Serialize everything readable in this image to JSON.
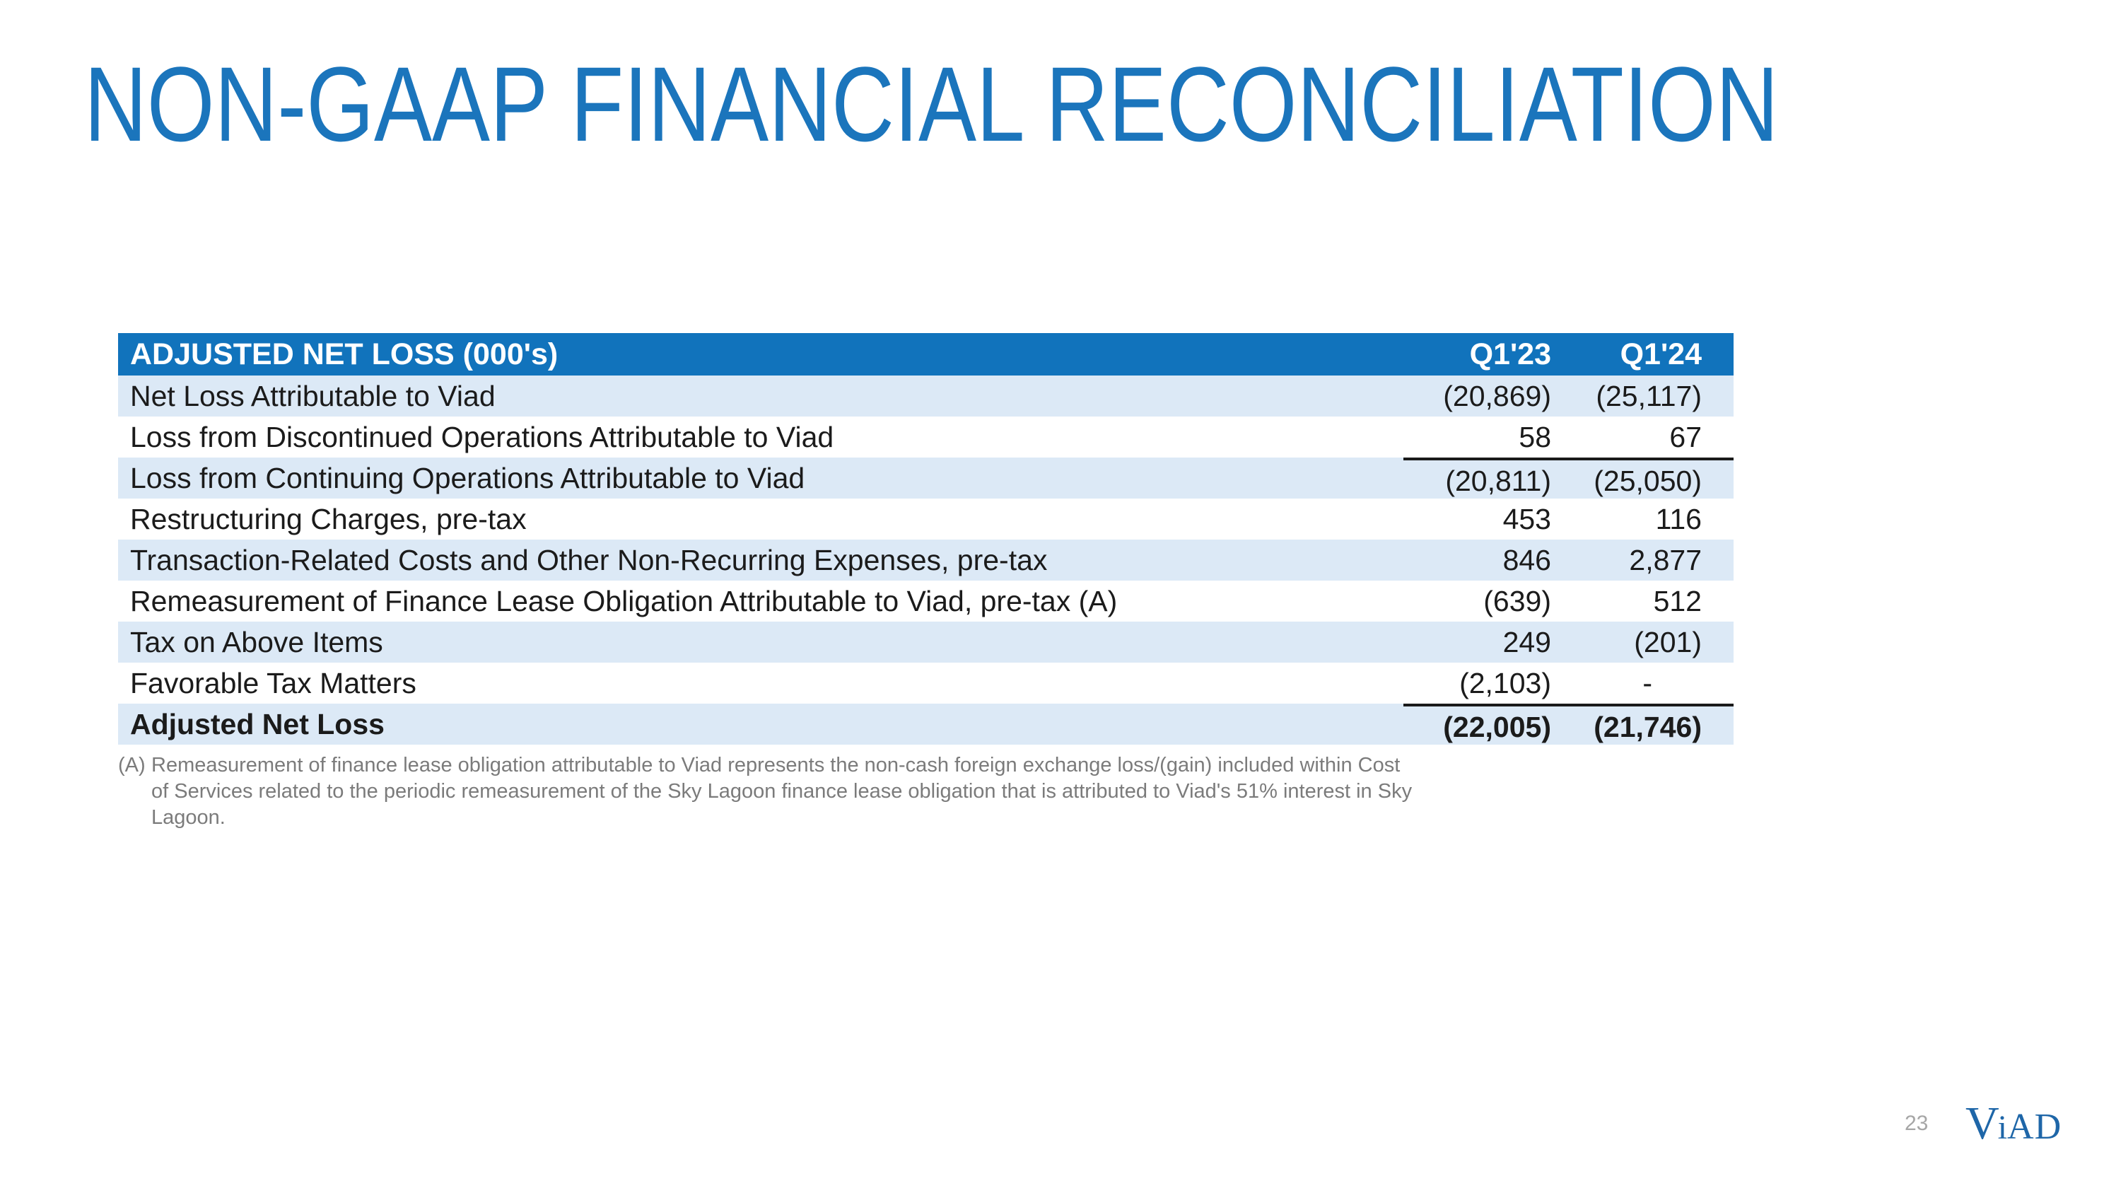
{
  "slide": {
    "title": "NON-GAAP FINANCIAL RECONCILIATION",
    "page_number": "23",
    "logo": {
      "v": "V",
      "i": "i",
      "ad": "AD"
    }
  },
  "table": {
    "header": {
      "label": "ADJUSTED NET LOSS (000's)",
      "col1": "Q1'23",
      "col2": "Q1'24"
    },
    "rows": [
      {
        "label": "Net Loss Attributable to Viad",
        "q123": "(20,869)",
        "q124": "(25,117)"
      },
      {
        "label": "Loss from Discontinued Operations Attributable to Viad",
        "q123": "58",
        "q124": "67"
      },
      {
        "label": "Loss from Continuing Operations Attributable to Viad",
        "q123": "(20,811)",
        "q124": "(25,050)"
      },
      {
        "label": "Restructuring Charges, pre-tax",
        "q123": "453",
        "q124": "116"
      },
      {
        "label": "Transaction-Related Costs and Other Non-Recurring Expenses, pre-tax",
        "q123": "846",
        "q124": "2,877"
      },
      {
        "label": "Remeasurement of Finance Lease Obligation Attributable to Viad, pre-tax (A)",
        "q123": "(639)",
        "q124": "512"
      },
      {
        "label": "Tax on Above Items",
        "q123": "249",
        "q124": "(201)"
      },
      {
        "label": "Favorable Tax Matters",
        "q123": "(2,103)",
        "q124": "-"
      },
      {
        "label": "Adjusted Net Loss",
        "q123": "(22,005)",
        "q124": "(21,746)"
      }
    ]
  },
  "footnote": {
    "label": "(A)",
    "lines": [
      "Remeasurement of finance lease obligation attributable to Viad represents the non-cash foreign exchange loss/(gain) included within Cost",
      "of Services related to the periodic remeasurement of the Sky Lagoon finance lease obligation that is attributed to Viad's 51% interest in Sky",
      "Lagoon."
    ]
  },
  "colors": {
    "title_blue": "#1B75BC",
    "header_blue": "#1173BC",
    "row_alt_blue": "#DCE9F6",
    "footnote_gray": "#7B7B7B",
    "page_gray": "#A6A6A6",
    "logo_blue": "#1E66A8"
  }
}
